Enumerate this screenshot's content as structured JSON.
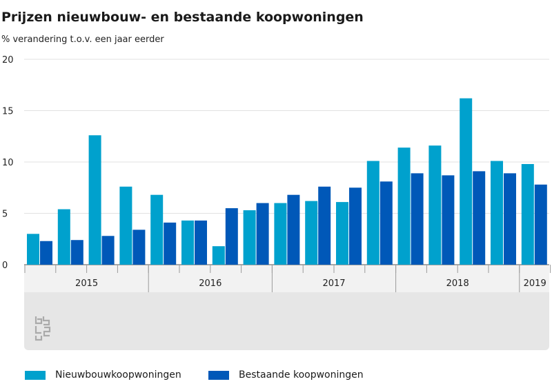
{
  "header": {
    "title": "Prijzen nieuwbouw- en bestaande koopwoningen",
    "subtitle": "% verandering t.o.v. een jaar eerder"
  },
  "colors": {
    "series_new": "#00a1cd",
    "series_existing": "#0058b8",
    "axis_band": "#e6e6e6",
    "grid": "#e1e1e1"
  },
  "chart_data": {
    "type": "bar",
    "categories": [
      "2015 Q1",
      "2015 Q2",
      "2015 Q3",
      "2015 Q4",
      "2016 Q1",
      "2016 Q2",
      "2016 Q3",
      "2016 Q4",
      "2017 Q1",
      "2017 Q2",
      "2017 Q3",
      "2017 Q4",
      "2018 Q1",
      "2018 Q2",
      "2018 Q3",
      "2018 Q4",
      "2019 Q1"
    ],
    "year_labels": [
      {
        "label": "2015",
        "quarters": 4
      },
      {
        "label": "2016",
        "quarters": 4
      },
      {
        "label": "2017",
        "quarters": 4
      },
      {
        "label": "2018",
        "quarters": 4
      },
      {
        "label": "2019",
        "quarters": 1
      }
    ],
    "series": [
      {
        "name": "Nieuwbouwkoopwoningen",
        "values": [
          3.0,
          5.4,
          12.6,
          7.6,
          6.8,
          4.3,
          1.8,
          5.3,
          6.0,
          6.2,
          6.1,
          10.1,
          11.4,
          11.6,
          16.2,
          10.1,
          9.8
        ]
      },
      {
        "name": "Bestaande koopwoningen",
        "values": [
          2.3,
          2.4,
          2.8,
          3.4,
          4.1,
          4.3,
          5.5,
          6.0,
          6.8,
          7.6,
          7.5,
          8.1,
          8.9,
          8.7,
          9.1,
          8.9,
          7.8
        ]
      }
    ],
    "ylim": [
      0,
      20
    ],
    "yticks": [
      0,
      5,
      10,
      15,
      20
    ],
    "grid": true,
    "legend_position": "bottom"
  }
}
